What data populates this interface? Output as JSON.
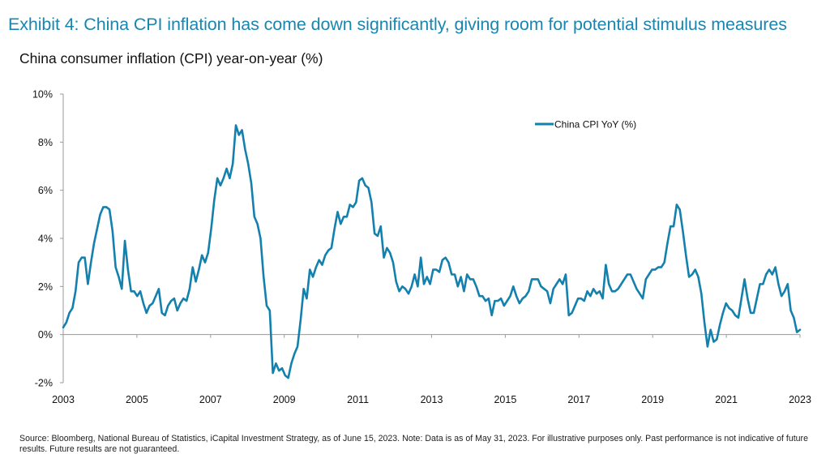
{
  "title": "Exhibit 4: China CPI inflation has come down significantly, giving room for potential stimulus measures",
  "subtitle": "China consumer inflation (CPI) year-on-year (%)",
  "footer": "Source: Bloomberg, National Bureau of Statistics, iCapital Investment Strategy, as of June 15, 2023. Note: Data is as of May 31, 2023. For illustrative purposes only. Past performance is not indicative of future results. Future results are not guaranteed.",
  "colors": {
    "title": "#1a86b0",
    "series": "#1380ad",
    "axis": "#9a9a9a"
  },
  "chart_data": {
    "type": "line",
    "title": "China consumer inflation (CPI) year-on-year (%)",
    "xlabel": "",
    "ylabel": "",
    "ylim": [
      -2,
      10
    ],
    "y_ticks": [
      {
        "value": -2,
        "label": "-2%"
      },
      {
        "value": 0,
        "label": "0%"
      },
      {
        "value": 2,
        "label": "2%"
      },
      {
        "value": 4,
        "label": "4%"
      },
      {
        "value": 6,
        "label": "6%"
      },
      {
        "value": 8,
        "label": "8%"
      },
      {
        "value": 10,
        "label": "10%"
      }
    ],
    "x_ticks": [
      "2003",
      "2005",
      "2007",
      "2009",
      "2011",
      "2013",
      "2015",
      "2017",
      "2019",
      "2021",
      "2023"
    ],
    "grid": false,
    "legend_position": "top-right",
    "series": [
      {
        "name": "China CPI YoY (%)",
        "values": [
          0.3,
          0.5,
          0.9,
          1.1,
          1.8,
          3.0,
          3.2,
          3.2,
          2.1,
          3.0,
          3.8,
          4.4,
          5.0,
          5.3,
          5.3,
          5.2,
          4.3,
          2.8,
          2.4,
          1.9,
          3.9,
          2.7,
          1.8,
          1.8,
          1.6,
          1.8,
          1.3,
          0.9,
          1.2,
          1.3,
          1.6,
          1.9,
          0.9,
          0.8,
          1.2,
          1.4,
          1.5,
          1.0,
          1.3,
          1.5,
          1.4,
          1.9,
          2.8,
          2.2,
          2.7,
          3.3,
          3.0,
          3.4,
          4.4,
          5.6,
          6.5,
          6.2,
          6.5,
          6.9,
          6.5,
          7.1,
          8.7,
          8.3,
          8.5,
          7.7,
          7.1,
          6.3,
          4.9,
          4.6,
          4.0,
          2.4,
          1.2,
          1.0,
          -1.6,
          -1.2,
          -1.5,
          -1.4,
          -1.7,
          -1.8,
          -1.2,
          -0.8,
          -0.5,
          0.6,
          1.9,
          1.5,
          2.7,
          2.4,
          2.8,
          3.1,
          2.9,
          3.3,
          3.5,
          3.6,
          4.4,
          5.1,
          4.6,
          4.9,
          4.9,
          5.4,
          5.3,
          5.5,
          6.4,
          6.5,
          6.2,
          6.1,
          5.5,
          4.2,
          4.1,
          4.5,
          3.2,
          3.6,
          3.4,
          3.0,
          2.2,
          1.8,
          2.0,
          1.9,
          1.7,
          2.0,
          2.5,
          2.0,
          3.2,
          2.1,
          2.4,
          2.1,
          2.7,
          2.7,
          2.6,
          3.1,
          3.2,
          3.0,
          2.5,
          2.5,
          2.0,
          2.4,
          1.8,
          2.5,
          2.3,
          2.3,
          2.0,
          1.6,
          1.6,
          1.4,
          1.5,
          0.8,
          1.4,
          1.4,
          1.5,
          1.2,
          1.4,
          1.6,
          2.0,
          1.6,
          1.3,
          1.5,
          1.6,
          1.8,
          2.3,
          2.3,
          2.3,
          2.0,
          1.9,
          1.8,
          1.3,
          1.9,
          2.1,
          2.3,
          2.1,
          2.5,
          0.8,
          0.9,
          1.2,
          1.5,
          1.5,
          1.4,
          1.8,
          1.6,
          1.9,
          1.7,
          1.8,
          1.5,
          2.9,
          2.1,
          1.8,
          1.8,
          1.9,
          2.1,
          2.3,
          2.5,
          2.5,
          2.2,
          1.9,
          1.7,
          1.5,
          2.3,
          2.5,
          2.7,
          2.7,
          2.8,
          2.8,
          3.0,
          3.8,
          4.5,
          4.5,
          5.4,
          5.2,
          4.3,
          3.3,
          2.4,
          2.5,
          2.7,
          2.4,
          1.7,
          0.5,
          -0.5,
          0.2,
          -0.3,
          -0.2,
          0.4,
          0.9,
          1.3,
          1.1,
          1.0,
          0.8,
          0.7,
          1.5,
          2.3,
          1.5,
          0.9,
          0.9,
          1.5,
          2.1,
          2.1,
          2.5,
          2.7,
          2.5,
          2.8,
          2.1,
          1.6,
          1.8,
          2.1,
          1.0,
          0.7,
          0.1,
          0.2
        ]
      }
    ]
  }
}
